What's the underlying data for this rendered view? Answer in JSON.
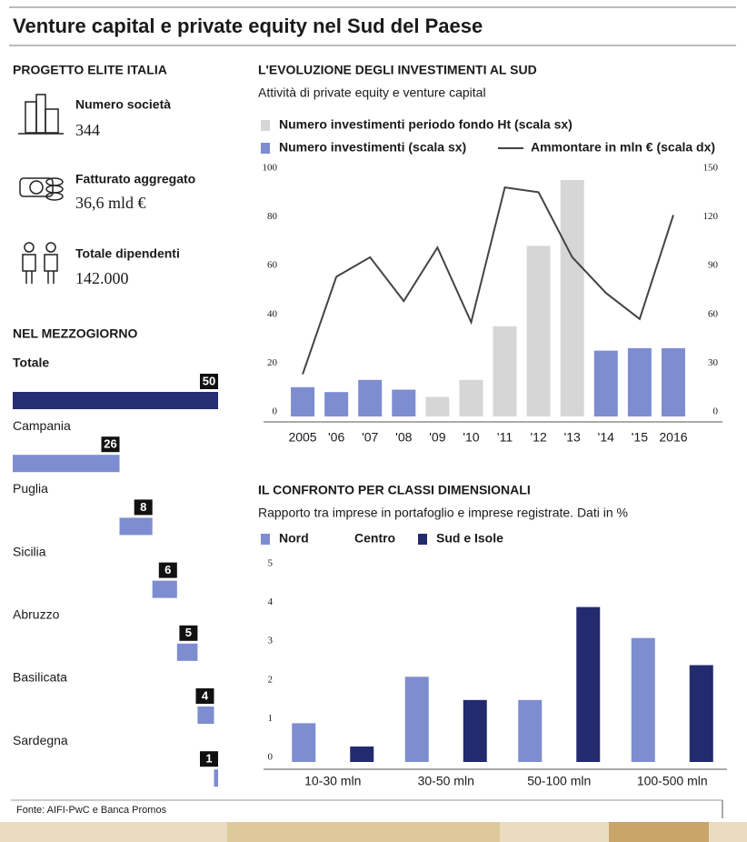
{
  "header": {
    "title": "Venture capital e private equity nel Sud del Paese"
  },
  "elite": {
    "title": "PROGETTO ELITE ITALIA",
    "items": [
      {
        "label": "Numero società",
        "value": "344"
      },
      {
        "label": "Fatturato aggregato",
        "value": "36,6 mld €"
      },
      {
        "label": "Totale dipendenti",
        "value": "142.000"
      }
    ]
  },
  "chart_data": [
    {
      "type": "waterfall",
      "title": "NEL MEZZOGIORNO",
      "categories": [
        "Totale",
        "Campania",
        "Puglia",
        "Sicilia",
        "Abruzzo",
        "Basilicata",
        "Sardegna"
      ],
      "values": [
        50,
        26,
        8,
        6,
        5,
        4,
        1
      ],
      "total_color": "#262e74",
      "color": "#7d8dd0"
    },
    {
      "type": "combo",
      "title": "L'EVOLUZIONE DEGLI INVESTIMENTI AL SUD",
      "subtitle": "Attività di private equity e venture capital",
      "categories": [
        "2005",
        "'06",
        "'07",
        "'08",
        "'09",
        "'10",
        "'11",
        "'12",
        "'13",
        "'14",
        "'15",
        "2016"
      ],
      "series": [
        {
          "name": "Numero investimenti periodo fondo Ht (scala sx)",
          "color": "#d6d6d6",
          "values": [
            null,
            null,
            null,
            null,
            8,
            15,
            37,
            70,
            97,
            null,
            null,
            null
          ]
        },
        {
          "name": "Numero investimenti (scala sx)",
          "color": "#7d8dd0",
          "values": [
            12,
            10,
            15,
            11,
            null,
            null,
            null,
            null,
            null,
            27,
            28,
            28
          ]
        },
        {
          "name": "Ammontare in mln € (scala dx)",
          "color": "#444444",
          "axis": "y2",
          "values": [
            26,
            86,
            98,
            71,
            104,
            58,
            141,
            138,
            98,
            76,
            60,
            124
          ]
        }
      ],
      "ylim": [
        0,
        100
      ],
      "yticks": [
        0,
        20,
        40,
        60,
        80,
        100
      ],
      "y2lim": [
        0,
        150
      ],
      "y2ticks": [
        0,
        30,
        60,
        90,
        120,
        150
      ]
    },
    {
      "type": "bar",
      "title": "IL CONFRONTO PER CLASSI DIMENSIONALI",
      "subtitle": "Rapporto tra imprese in portafoglio e imprese registrate. Dati in %",
      "categories": [
        "10-30 mln",
        "30-50 mln",
        "50-100 mln",
        "100-500 mln"
      ],
      "series": [
        {
          "name": "Nord",
          "color": "#7d8dd0",
          "values": [
            1.0,
            2.2,
            1.6,
            3.2
          ]
        },
        {
          "name": "Centro",
          "color": "#ffffff",
          "values": [
            null,
            null,
            null,
            null
          ]
        },
        {
          "name": "Sud e Isole",
          "color": "#232a6e",
          "values": [
            0.4,
            1.6,
            4.0,
            2.5
          ]
        }
      ],
      "ylim": [
        0,
        5
      ],
      "yticks": [
        0,
        1,
        2,
        3,
        4,
        5
      ]
    }
  ],
  "source": "Fonte: AIFI-PwC e Banca Promos"
}
